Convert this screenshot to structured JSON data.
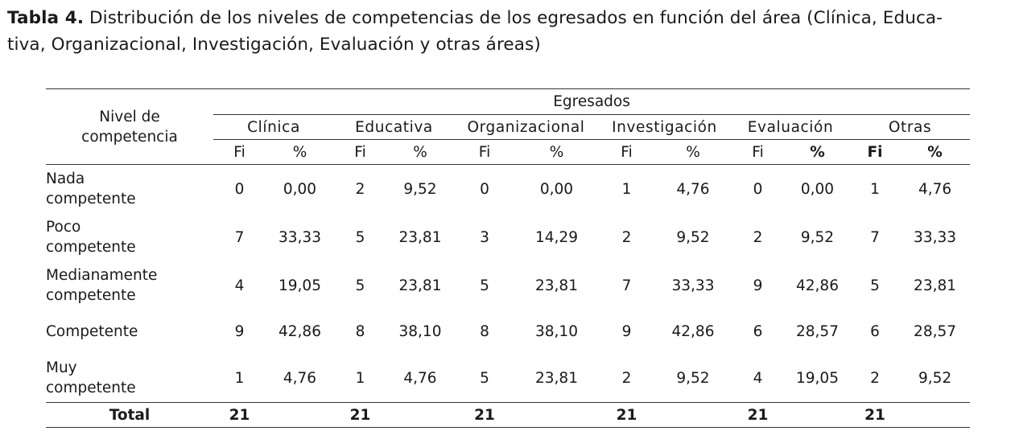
{
  "caption": {
    "label": "Tabla 4.",
    "text_line1": " Distribución de los niveles de competencias de los egresados en función del área (Clínica, Educa-",
    "text_line2": "tiva, Organizacional, Investigación, Evaluación y otras áreas)"
  },
  "table": {
    "level_header_line1": "Nivel de",
    "level_header_line2": "competencia",
    "group_header": "Egresados",
    "areas": [
      "Clínica",
      "Educativa",
      "Organizacional",
      "Investigación",
      "Evaluación",
      "Otras"
    ],
    "fi_label": "Fi",
    "pct_label": "%",
    "rows": [
      {
        "line1": "Nada",
        "line2": "competente",
        "values": [
          "0",
          "0,00",
          "2",
          "9,52",
          "0",
          "0,00",
          "1",
          "4,76",
          "0",
          "0,00",
          "1",
          "4,76"
        ]
      },
      {
        "line1": "Poco",
        "line2": "competente",
        "values": [
          "7",
          "33,33",
          "5",
          "23,81",
          "3",
          "14,29",
          "2",
          "9,52",
          "2",
          "9,52",
          "7",
          "33,33"
        ]
      },
      {
        "line1": "Medianamente",
        "line2": "competente",
        "values": [
          "4",
          "19,05",
          "5",
          "23,81",
          "5",
          "23,81",
          "7",
          "33,33",
          "9",
          "42,86",
          "5",
          "23,81"
        ]
      },
      {
        "line1": "Competente",
        "line2": "",
        "values": [
          "9",
          "42,86",
          "8",
          "38,10",
          "8",
          "38,10",
          "9",
          "42,86",
          "6",
          "28,57",
          "6",
          "28,57"
        ]
      },
      {
        "line1": "Muy",
        "line2": "competente",
        "values": [
          "1",
          "4,76",
          "1",
          "4,76",
          "5",
          "23,81",
          "2",
          "9,52",
          "4",
          "19,05",
          "2",
          "9,52"
        ]
      }
    ],
    "total_label": "Total",
    "totals": [
      "21",
      "21",
      "21",
      "21",
      "21",
      "21"
    ]
  }
}
